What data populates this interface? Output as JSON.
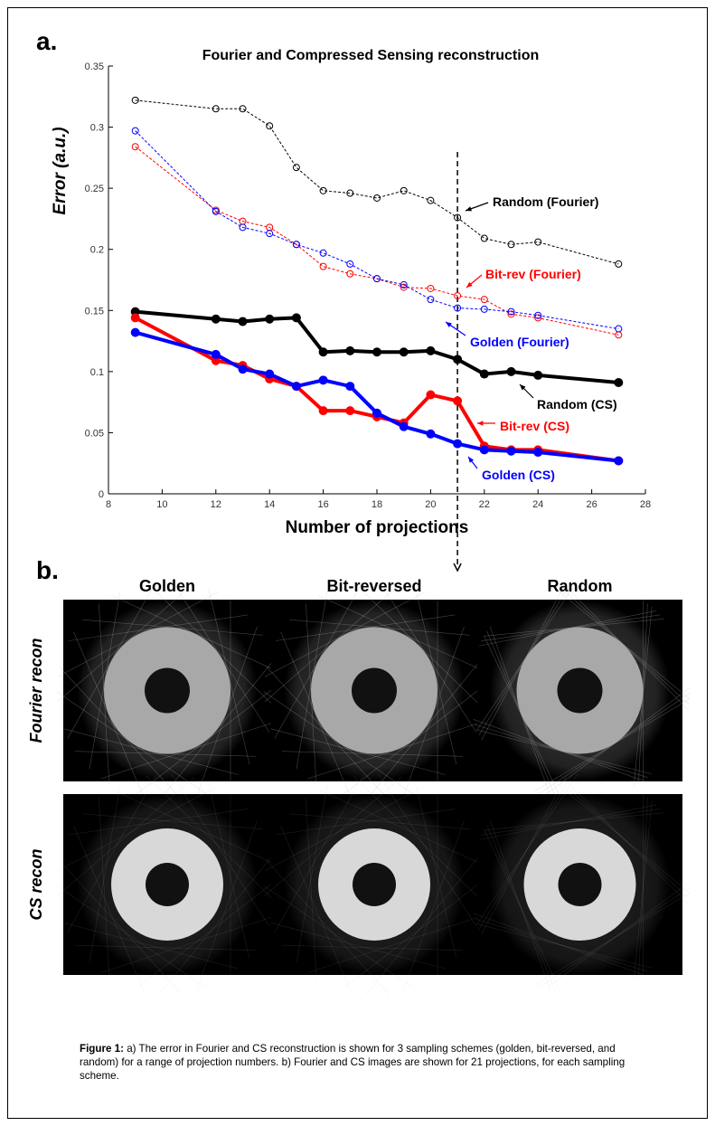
{
  "figure": {
    "panel_a": "a.",
    "panel_b": "b.",
    "columns": [
      "Golden",
      "Bit-reversed",
      "Random"
    ],
    "rows": [
      "Fourier recon",
      "CS recon"
    ],
    "caption": {
      "label": "Figure 1:",
      "text": "a) The error in Fourier and CS reconstruction is shown for 3 sampling schemes (golden, bit-reversed, and random) for a range of projection numbers. b) Fourier and CS images are shown for 21 projections, for each sampling scheme."
    }
  },
  "chart_data": {
    "type": "line",
    "title": "Fourier and Compressed Sensing reconstruction",
    "x_label": "Number of projections",
    "y_label": "Error (a.u.)",
    "x": [
      9,
      12,
      13,
      14,
      15,
      16,
      17,
      18,
      19,
      20,
      21,
      22,
      23,
      24,
      27
    ],
    "series": [
      {
        "name": "Random (Fourier)",
        "color": "#000000",
        "line_style": "dashed",
        "marker": "open",
        "values": [
          0.322,
          0.315,
          0.315,
          0.301,
          0.267,
          0.248,
          0.246,
          0.242,
          0.248,
          0.24,
          0.226,
          0.209,
          0.204,
          0.206,
          0.188
        ]
      },
      {
        "name": "Bit-rev (Fourier)",
        "color": "#ff0000",
        "line_style": "dashed",
        "marker": "open",
        "values": [
          0.284,
          0.232,
          0.223,
          0.218,
          0.204,
          0.186,
          0.18,
          0.176,
          0.169,
          0.168,
          0.162,
          0.159,
          0.147,
          0.144,
          0.13
        ]
      },
      {
        "name": "Golden (Fourier)",
        "color": "#0000ff",
        "line_style": "dashed",
        "marker": "open",
        "values": [
          0.297,
          0.231,
          0.218,
          0.213,
          0.204,
          0.197,
          0.188,
          0.176,
          0.171,
          0.159,
          0.152,
          0.151,
          0.149,
          0.146,
          0.135
        ]
      },
      {
        "name": "Random (CS)",
        "color": "#000000",
        "line_style": "solid",
        "marker": "filled",
        "values": [
          0.149,
          0.143,
          0.141,
          0.143,
          0.144,
          0.116,
          0.117,
          0.116,
          0.116,
          0.117,
          0.11,
          0.098,
          0.1,
          0.097,
          0.091
        ]
      },
      {
        "name": "Bit-rev (CS)",
        "color": "#ff0000",
        "line_style": "solid",
        "marker": "filled",
        "values": [
          0.144,
          0.109,
          0.105,
          0.094,
          0.088,
          0.068,
          0.068,
          0.063,
          0.058,
          0.081,
          0.076,
          0.039,
          0.036,
          0.036,
          0.027
        ]
      },
      {
        "name": "Golden (CS)",
        "color": "#0000ff",
        "line_style": "solid",
        "marker": "filled",
        "values": [
          0.132,
          0.114,
          0.102,
          0.098,
          0.088,
          0.093,
          0.088,
          0.066,
          0.055,
          0.049,
          0.041,
          0.036,
          0.035,
          0.034,
          0.027
        ]
      }
    ],
    "xlim": [
      8,
      28
    ],
    "xticks": [
      8,
      10,
      12,
      14,
      16,
      18,
      20,
      22,
      24,
      26,
      28
    ],
    "ylim": [
      0,
      0.35
    ],
    "yticks": [
      0,
      0.05,
      0.1,
      0.15,
      0.2,
      0.25,
      0.3,
      0.35
    ],
    "vline": 21,
    "grid": false
  }
}
